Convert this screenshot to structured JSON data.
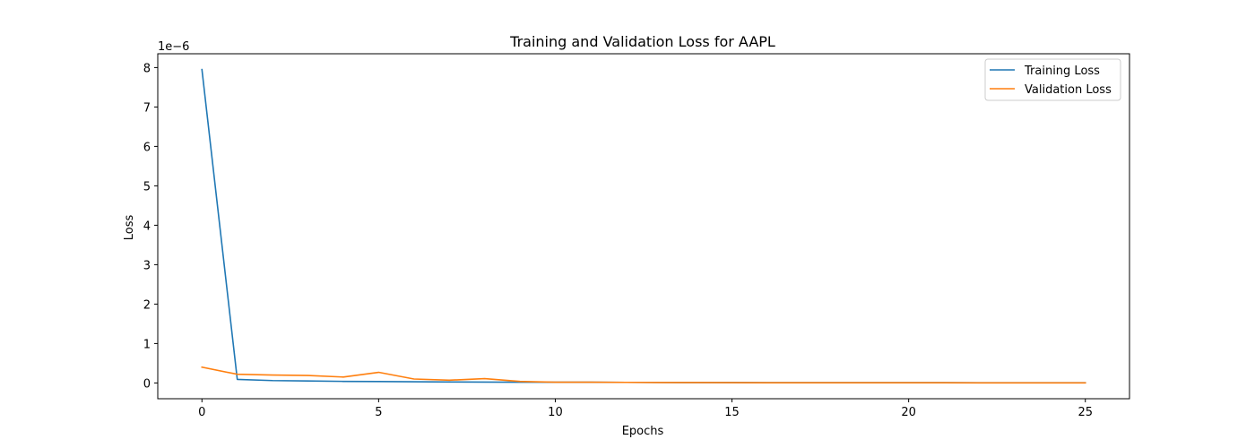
{
  "chart_data": {
    "type": "line",
    "title": "Training and Validation Loss for AAPL",
    "xlabel": "Epochs",
    "ylabel": "Loss",
    "y_offset_label": "1e−6",
    "y_scale_factor": 1e-06,
    "xlim": [
      -1.25,
      26.25
    ],
    "ylim": [
      -4e-07,
      8.35e-06
    ],
    "xticks": [
      0,
      5,
      10,
      15,
      20,
      25
    ],
    "xtick_labels": [
      "0",
      "5",
      "10",
      "15",
      "20",
      "25"
    ],
    "yticks": [
      0,
      1e-06,
      2e-06,
      3e-06,
      4e-06,
      5e-06,
      6e-06,
      7e-06,
      8e-06
    ],
    "ytick_labels": [
      "0",
      "1",
      "2",
      "3",
      "4",
      "5",
      "6",
      "7",
      "8"
    ],
    "grid": false,
    "legend_position": "top-right",
    "x": [
      0,
      1,
      2,
      3,
      4,
      5,
      6,
      7,
      8,
      9,
      10,
      11,
      12,
      13,
      14,
      15,
      16,
      17,
      18,
      19,
      20,
      21,
      22,
      23,
      24,
      25
    ],
    "series": [
      {
        "name": "Training Loss",
        "color": "#1f77b4",
        "values": [
          7.95e-06,
          9e-08,
          6e-08,
          5e-08,
          4e-08,
          3.5e-08,
          3e-08,
          2.5e-08,
          2.2e-08,
          2e-08,
          2e-08,
          1.8e-08,
          1.5e-08,
          1.2e-08,
          1e-08,
          1e-08,
          8e-09,
          8e-09,
          8e-09,
          7e-09,
          7e-09,
          7e-09,
          6e-09,
          6e-09,
          6e-09,
          6e-09
        ]
      },
      {
        "name": "Validation Loss",
        "color": "#ff7f0e",
        "values": [
          4e-07,
          2.2e-07,
          2e-07,
          1.9e-07,
          1.5e-07,
          2.7e-07,
          1e-07,
          7e-08,
          1.1e-07,
          4e-08,
          2e-08,
          2e-08,
          1.5e-08,
          1e-08,
          1e-08,
          8e-09,
          6e-09,
          5e-09,
          5e-09,
          4e-09,
          4e-09,
          4e-09,
          3e-09,
          3e-09,
          3e-09,
          3e-09
        ]
      }
    ]
  }
}
